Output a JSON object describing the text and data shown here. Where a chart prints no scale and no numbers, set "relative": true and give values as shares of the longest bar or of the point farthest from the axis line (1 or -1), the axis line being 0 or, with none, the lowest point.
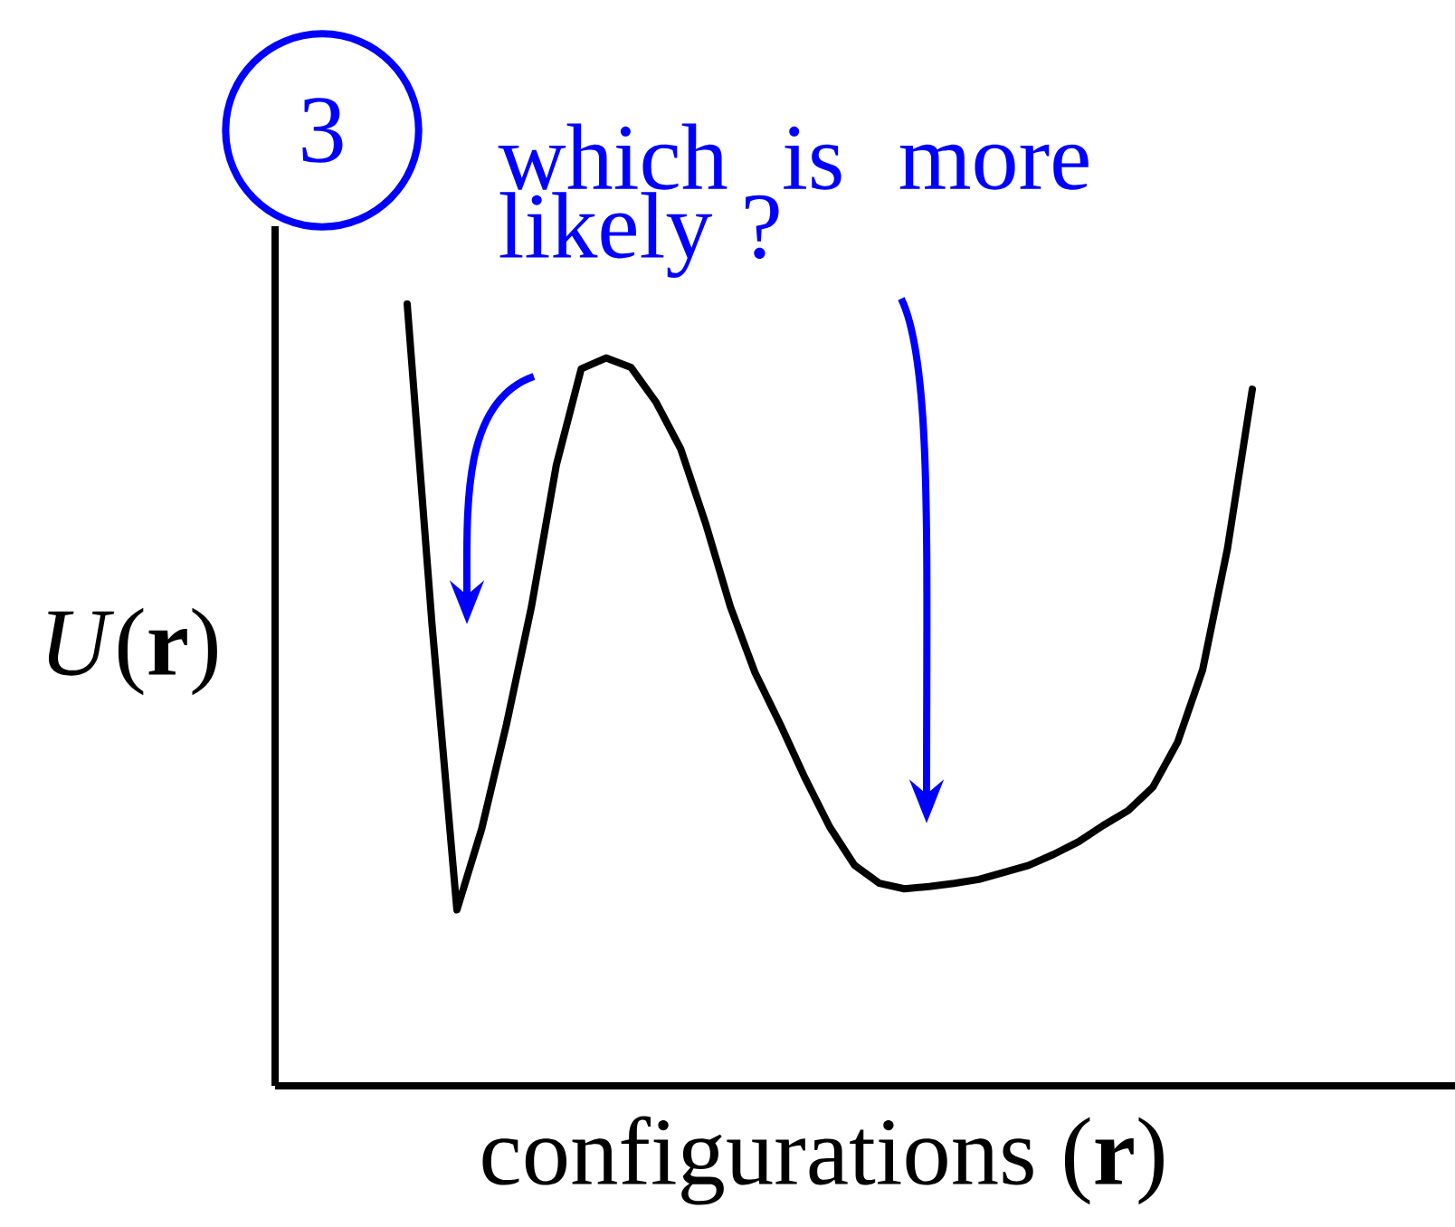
{
  "chart_data": {
    "type": "line",
    "relative": true,
    "xlabel": "configurations (**r**)",
    "ylabel": "*U*(**r**)",
    "annotations": [
      "3",
      "which is more likely ?"
    ],
    "categories": [
      null,
      null,
      null,
      null,
      null,
      null,
      null,
      null,
      null,
      null,
      null,
      null,
      null,
      null,
      null,
      null,
      null,
      null,
      null,
      null,
      null,
      null,
      null,
      null,
      null,
      null,
      null,
      null,
      null,
      null,
      null,
      null,
      null,
      null,
      null
    ],
    "series": [
      {
        "color": "#000000",
        "values": [
          1.0,
          0.59,
          0.225,
          0.329,
          0.463,
          0.613,
          0.794,
          0.917,
          0.931,
          0.919,
          0.875,
          0.815,
          0.72,
          0.613,
          0.528,
          0.463,
          0.394,
          0.331,
          0.282,
          0.259,
          0.252,
          0.255,
          0.259,
          0.264,
          0.273,
          0.282,
          0.296,
          0.312,
          0.333,
          0.352,
          0.382,
          0.44,
          0.532,
          0.687,
          0.891
        ]
      }
    ]
  }
}
